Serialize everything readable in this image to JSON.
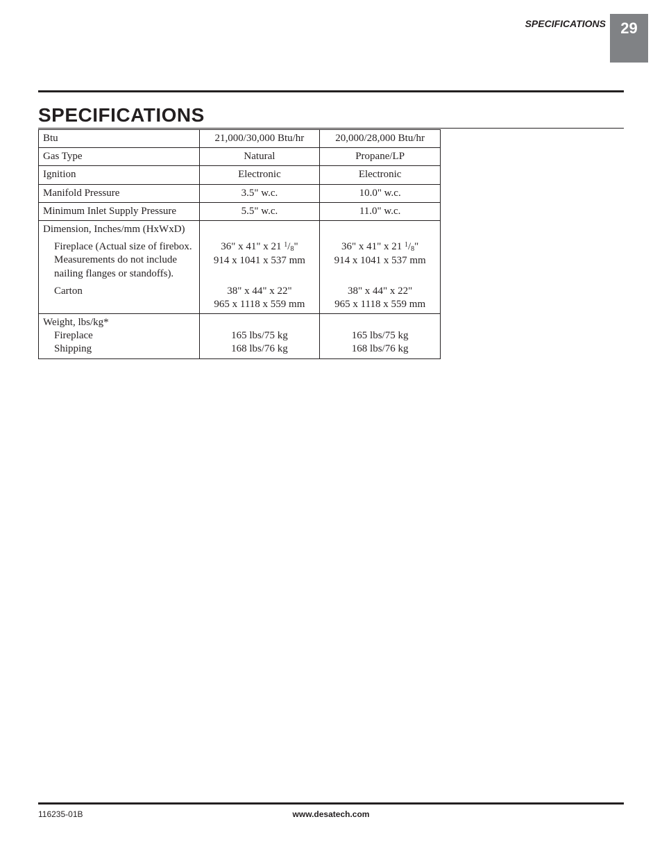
{
  "header": {
    "section_label": "SPECIFICATIONS",
    "page_number": "29"
  },
  "title": "SPECIFICATIONS",
  "table": {
    "rows": [
      {
        "label": "Btu",
        "c1": "21,000/30,000 Btu/hr",
        "c2": "20,000/28,000 Btu/hr"
      },
      {
        "label": "Gas Type",
        "c1": "Natural",
        "c2": "Propane/LP"
      },
      {
        "label": "Ignition",
        "c1": "Electronic",
        "c2": "Electronic"
      },
      {
        "label": "Manifold Pressure",
        "c1": "3.5\" w.c.",
        "c2": "10.0\" w.c."
      },
      {
        "label": "Minimum Inlet Supply Pressure",
        "c1": "5.5\" w.c.",
        "c2": "11.0\" w.c."
      }
    ],
    "dim_header": "Dimension, Inches/mm (HxWxD)",
    "fireplace_label": "Fireplace (Actual size of firebox. Measurements do not include nailing flanges or standoffs).",
    "fireplace_dim_in_prefix": "36\" x 41\" x 21 ",
    "fireplace_frac_num": "1",
    "fireplace_frac_den": "8",
    "fireplace_dim_in_suffix": "\"",
    "fireplace_dim_mm": "914 x 1041 x 537 mm",
    "carton_label": "Carton",
    "carton_dim_in": "38\" x 44\" x 22\"",
    "carton_dim_mm": "965 x 1118 x 559 mm",
    "weight_header": "Weight, lbs/kg*",
    "weight_fireplace_label": "Fireplace",
    "weight_fireplace_val": "165 lbs/75 kg",
    "weight_shipping_label": "Shipping",
    "weight_shipping_val": "168 lbs/76 kg"
  },
  "footer": {
    "doc_number": "116235-01B",
    "website": "www.desatech.com"
  }
}
